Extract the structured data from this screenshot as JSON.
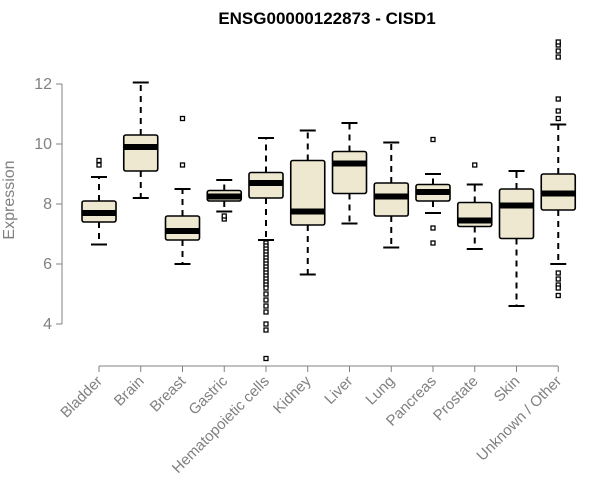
{
  "chart_data": {
    "type": "boxplot",
    "title": "ENSG00000122873 - CISD1",
    "xlabel": "",
    "ylabel": "Expression",
    "ylim": [
      2.6,
      13.6
    ],
    "yticks": [
      4,
      6,
      8,
      10,
      12
    ],
    "grid": false,
    "legend": "none",
    "colors": {
      "box_fill": "#EEE8D0",
      "stroke": "#000000",
      "axis": "#808080",
      "tick_text": "#808080",
      "title": "#000000"
    },
    "categories": [
      "Bladder",
      "Brain",
      "Breast",
      "Gastric",
      "Hematopoietic cells",
      "Kidney",
      "Liver",
      "Lung",
      "Pancreas",
      "Prostate",
      "Skin",
      "Unknown / Other"
    ],
    "boxes": [
      {
        "category": "Bladder",
        "whisker_low": 6.65,
        "q1": 7.4,
        "median": 7.7,
        "q3": 8.1,
        "whisker_high": 8.9,
        "outliers": [
          9.3,
          9.45
        ]
      },
      {
        "category": "Brain",
        "whisker_low": 8.2,
        "q1": 9.1,
        "median": 9.9,
        "q3": 10.3,
        "whisker_high": 12.05,
        "outliers": []
      },
      {
        "category": "Breast",
        "whisker_low": 6.0,
        "q1": 6.8,
        "median": 7.1,
        "q3": 7.6,
        "whisker_high": 8.5,
        "outliers": [
          9.3,
          10.85
        ]
      },
      {
        "category": "Gastric",
        "whisker_low": 7.75,
        "q1": 8.1,
        "median": 8.25,
        "q3": 8.45,
        "whisker_high": 8.8,
        "outliers": [
          7.5,
          7.6
        ]
      },
      {
        "category": "Hematopoietic cells",
        "whisker_low": 6.8,
        "q1": 8.2,
        "median": 8.7,
        "q3": 9.05,
        "whisker_high": 10.2,
        "outliers": [
          6.7,
          6.6,
          6.5,
          6.4,
          6.3,
          6.2,
          6.1,
          6.0,
          5.9,
          5.8,
          5.7,
          5.6,
          5.5,
          5.4,
          5.3,
          5.2,
          5.0,
          4.8,
          4.6,
          4.4,
          4.0,
          3.8,
          2.85
        ]
      },
      {
        "category": "Kidney",
        "whisker_low": 5.65,
        "q1": 7.3,
        "median": 7.75,
        "q3": 9.45,
        "whisker_high": 10.45,
        "outliers": []
      },
      {
        "category": "Liver",
        "whisker_low": 7.35,
        "q1": 8.35,
        "median": 9.35,
        "q3": 9.75,
        "whisker_high": 10.7,
        "outliers": []
      },
      {
        "category": "Lung",
        "whisker_low": 6.55,
        "q1": 7.6,
        "median": 8.25,
        "q3": 8.7,
        "whisker_high": 10.05,
        "outliers": []
      },
      {
        "category": "Pancreas",
        "whisker_low": 7.7,
        "q1": 8.1,
        "median": 8.4,
        "q3": 8.65,
        "whisker_high": 9.0,
        "outliers": [
          7.2,
          6.7,
          10.15
        ]
      },
      {
        "category": "Prostate",
        "whisker_low": 6.5,
        "q1": 7.25,
        "median": 7.45,
        "q3": 8.05,
        "whisker_high": 8.65,
        "outliers": [
          9.3
        ]
      },
      {
        "category": "Skin",
        "whisker_low": 4.6,
        "q1": 6.85,
        "median": 7.95,
        "q3": 8.5,
        "whisker_high": 9.1,
        "outliers": []
      },
      {
        "category": "Unknown / Other",
        "whisker_low": 6.0,
        "q1": 7.8,
        "median": 8.35,
        "q3": 9.0,
        "whisker_high": 10.65,
        "outliers": [
          5.7,
          5.5,
          5.3,
          5.2,
          4.95,
          10.85,
          11.1,
          11.5,
          12.9,
          13.1,
          13.3,
          13.4
        ]
      }
    ]
  }
}
